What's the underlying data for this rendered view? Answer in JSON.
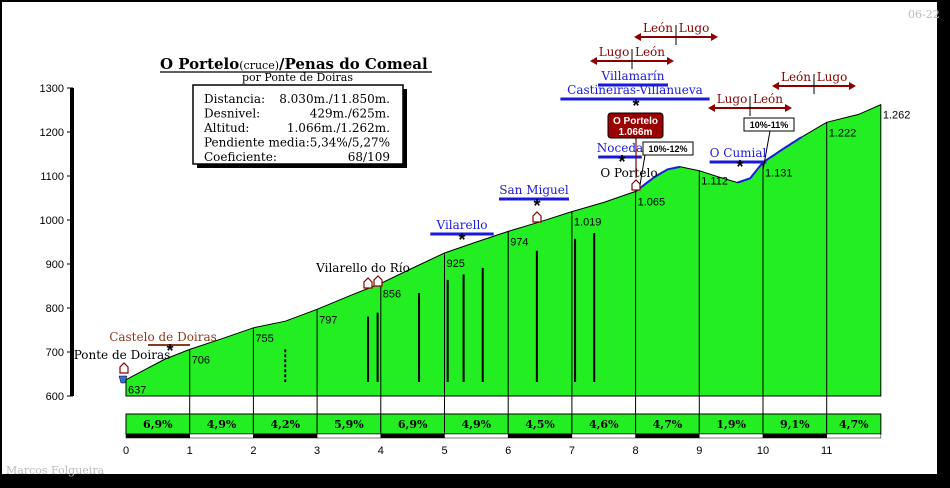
{
  "header": {
    "title_left": "O Portelo",
    "title_mid": "(cruce)",
    "title_right": "/Penas do Comeal",
    "subtitle": "por Ponte de Doiras",
    "corner_code": "06-22",
    "author": "Marcos Folgueira"
  },
  "stats": [
    {
      "label": "Distancia:",
      "value": "8.030m./11.850m."
    },
    {
      "label": "Desnivel:",
      "value": "429m./625m."
    },
    {
      "label": "Altitud:",
      "value": "1.066m./1.262m."
    },
    {
      "label": "Pendiente media:",
      "value": "5,34%/5,27%"
    },
    {
      "label": "Coeficiente:",
      "value": "68/109"
    }
  ],
  "summit_badge": {
    "line1": "O Portelo",
    "line2": "1.066m"
  },
  "colors": {
    "fill": "#22ee22",
    "blue": "#1a1adc",
    "red": "#8b0000",
    "brown": "#8b3a1a"
  },
  "chart_data": {
    "type": "area",
    "xlabel": "",
    "ylabel": "",
    "xlim": [
      0,
      12
    ],
    "ylim": [
      600,
      1300
    ],
    "x_ticks": [
      "0",
      "1",
      "2",
      "3",
      "4",
      "5",
      "6",
      "7",
      "8",
      "9",
      "10",
      "11"
    ],
    "y_ticks": [
      "600",
      "700",
      "800",
      "900",
      "1000",
      "1100",
      "1200",
      "1300"
    ],
    "profile": {
      "x": [
        0,
        0.3,
        0.6,
        1.0,
        1.5,
        2.0,
        2.5,
        3.0,
        3.5,
        4.0,
        4.5,
        5.0,
        5.5,
        6.0,
        6.5,
        7.0,
        7.5,
        8.0,
        8.3,
        8.5,
        8.7,
        9.0,
        9.3,
        9.6,
        9.8,
        10.0,
        10.3,
        10.6,
        11.0,
        11.5,
        11.85
      ],
      "y": [
        637,
        660,
        683,
        706,
        730,
        755,
        770,
        797,
        827,
        856,
        891,
        925,
        950,
        974,
        996,
        1019,
        1040,
        1065,
        1098,
        1115,
        1121,
        1112,
        1098,
        1085,
        1095,
        1131,
        1160,
        1188,
        1222,
        1240,
        1262
      ]
    },
    "point_labels": [
      {
        "x": 0.0,
        "y": 637,
        "text": "637"
      },
      {
        "x": 1.0,
        "y": 706,
        "text": "706"
      },
      {
        "x": 2.0,
        "y": 755,
        "text": "755"
      },
      {
        "x": 3.0,
        "y": 797,
        "text": "797"
      },
      {
        "x": 4.0,
        "y": 856,
        "text": "856"
      },
      {
        "x": 5.0,
        "y": 925,
        "text": "925"
      },
      {
        "x": 6.0,
        "y": 974,
        "text": "974"
      },
      {
        "x": 7.0,
        "y": 1019,
        "text": "1.019"
      },
      {
        "x": 8.0,
        "y": 1065,
        "text": "1.065"
      },
      {
        "x": 9.0,
        "y": 1112,
        "text": "1.112"
      },
      {
        "x": 10.0,
        "y": 1131,
        "text": "1.131"
      },
      {
        "x": 11.0,
        "y": 1222,
        "text": "1.222"
      },
      {
        "x": 11.85,
        "y": 1262,
        "text": "1.262"
      }
    ],
    "segment_gradients": [
      "6,9%",
      "4,9%",
      "4,2%",
      "5,9%",
      "6,9%",
      "4,9%",
      "4,5%",
      "4,6%",
      "4,7%",
      "1,9%",
      "9,1%",
      "4,7%"
    ],
    "vertical_markers": [
      2.5,
      3.8,
      3.95,
      4.6,
      5.05,
      5.3,
      5.6,
      6.45,
      7.05,
      7.35
    ],
    "places": [
      {
        "name": "Ponte de Doiras",
        "x": 0.0,
        "color": "black"
      },
      {
        "name": "Castelo de Doiras",
        "x": 0.55,
        "color": "brown"
      },
      {
        "name": "Vilarello do Río",
        "x": 3.9,
        "color": "black"
      },
      {
        "name": "Vilarello",
        "x": 5.2,
        "color": "blue"
      },
      {
        "name": "San Miguel",
        "x": 6.45,
        "color": "blue"
      },
      {
        "name": "O Portelo",
        "x": 8.0,
        "color": "black"
      },
      {
        "name": "Noceda",
        "x": 7.8,
        "color": "blue"
      },
      {
        "name": "Villamarín",
        "x": 7.95,
        "color": "blue"
      },
      {
        "name": "Castiñeiras-Villanueva",
        "x": 7.95,
        "color": "blue"
      },
      {
        "name": "O Cumial",
        "x": 9.6,
        "color": "blue"
      }
    ],
    "slope_boxes": [
      "10%-12%",
      "10%-11%"
    ],
    "direction_signs": [
      {
        "left": "León",
        "right": "Lugo"
      },
      {
        "left": "Lugo",
        "right": "León"
      },
      {
        "left": "Lugo",
        "right": "León"
      },
      {
        "left": "León",
        "right": "Lugo"
      }
    ]
  }
}
